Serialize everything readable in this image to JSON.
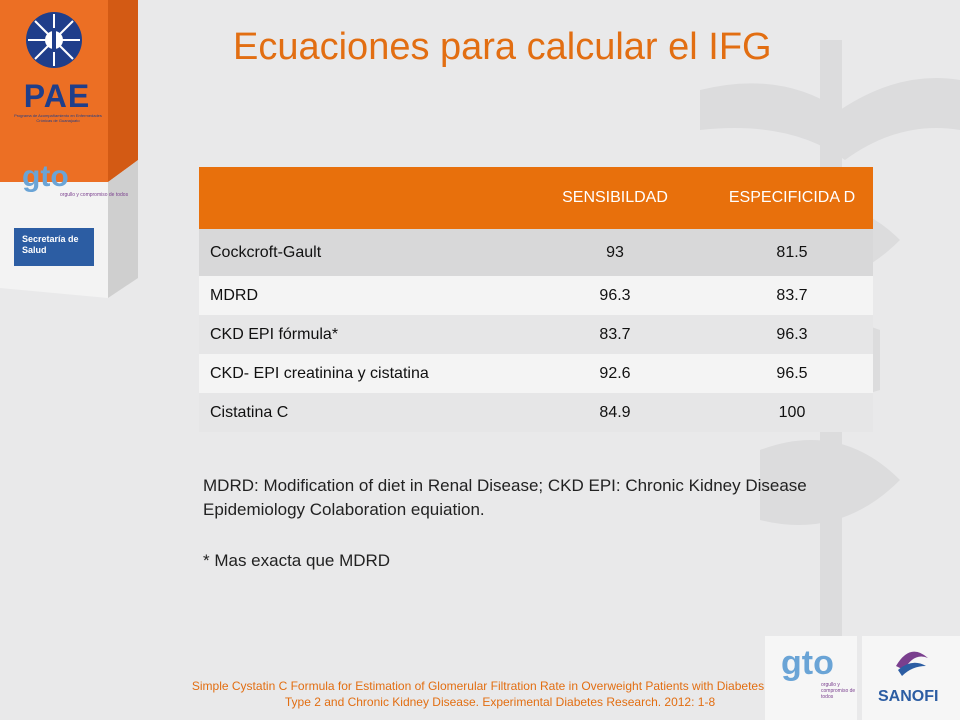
{
  "logos": {
    "pae": "PAE",
    "pae_sub": "Programa de Acompañamiento en Enfermedades Crónicas de Guanajuato",
    "gto": "gto",
    "gto_sub": "orgullo y compromiso de todos",
    "secretaria": "Secretaría de Salud",
    "sanofi": "SANOFI"
  },
  "colors": {
    "accent": "#e8700c",
    "title": "#e26e12",
    "brand_blue": "#2c5da3"
  },
  "title": "Ecuaciones para calcular el IFG",
  "table": {
    "headers": [
      "",
      "SENSIBILDAD",
      "ESPECIFICIDA D"
    ],
    "rows": [
      [
        "Cockcroft-Gault",
        "93",
        "81.5"
      ],
      [
        "MDRD",
        "96.3",
        "83.7"
      ],
      [
        "CKD EPI fórmula*",
        "83.7",
        "96.3"
      ],
      [
        "CKD-  EPI creatinina y cistatina",
        "92.6",
        "96.5"
      ],
      [
        "Cistatina C",
        "84.9",
        "100"
      ]
    ]
  },
  "notes": {
    "abbrev": "MDRD: Modification of diet in Renal Disease; CKD EPI: Chronic Kidney Disease Epidemiology Colaboration  equiation.",
    "star": "* Mas exacta que MDRD"
  },
  "reference": "Simple Cystatin C Formula for Estimation of Glomerular Filtration Rate in Overweight Patients with Diabetes Mellitus Type 2 and Chronic Kidney Disease. Experimental Diabetes Research. 2012: 1-8"
}
